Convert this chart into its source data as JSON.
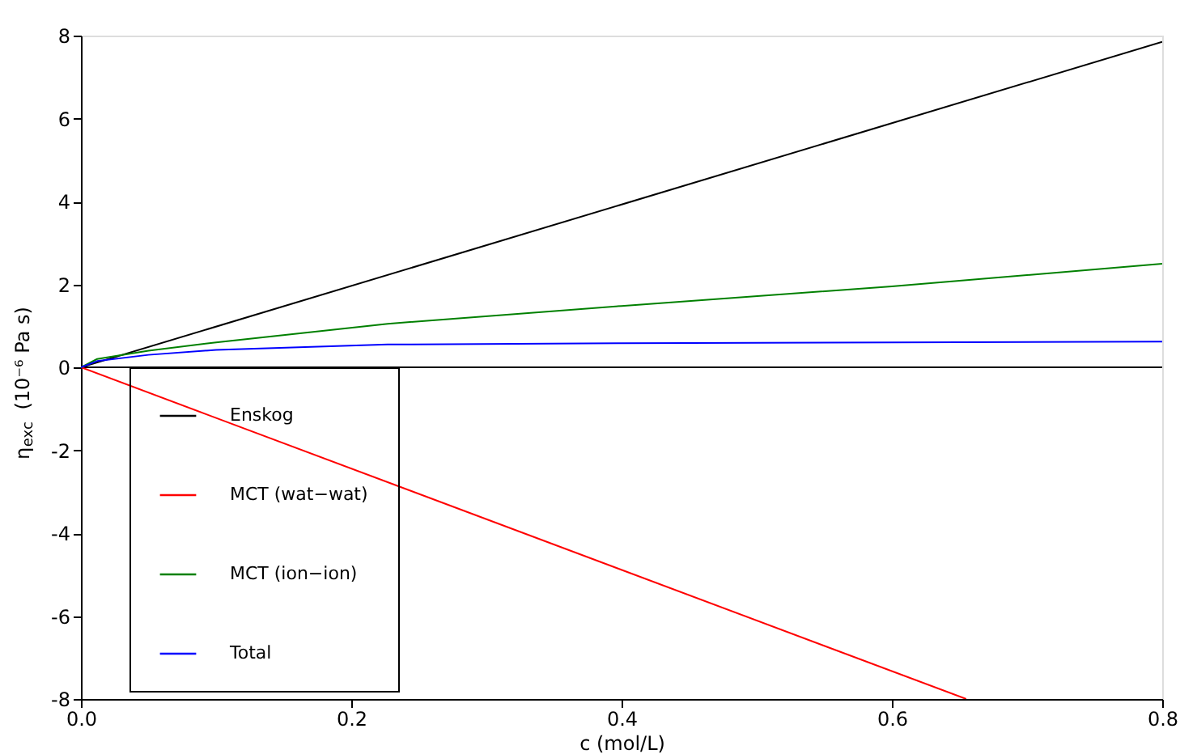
{
  "chart_data": {
    "type": "line",
    "xlabel": "c (mol/L)",
    "ylabel": "η$_{exc}$ (10⁻⁶ Pa s)",
    "xlim": [
      0,
      0.8
    ],
    "ylim": [
      -8,
      8
    ],
    "xticks": [
      {
        "value": 0,
        "label": "0.0"
      },
      {
        "value": 0.2,
        "label": "0.2"
      },
      {
        "value": 0.4,
        "label": "0.4"
      },
      {
        "value": 0.6,
        "label": "0.6"
      },
      {
        "value": 0.8,
        "label": "0.8"
      }
    ],
    "yticks": [
      -8,
      -6,
      -4,
      -2,
      0,
      2,
      4,
      6,
      8
    ],
    "grid": false,
    "legend": "bottom left",
    "line_style": "solid",
    "marker": "none",
    "ref_lines": [
      {
        "axis": "y",
        "value": 0,
        "color": "#000000"
      }
    ],
    "series": [
      {
        "name": "Enskog",
        "color": "#000000",
        "x": [
          0,
          0.8
        ],
        "values": [
          0,
          7.85
        ]
      },
      {
        "name": "MCT (wat−wat)",
        "color": "#ff0000",
        "x": [
          0,
          0.655
        ],
        "values": [
          0,
          -8
        ]
      },
      {
        "name": "MCT (ion−ion)",
        "color": "#008000",
        "x": [
          0,
          0.012,
          0.05,
          0.1,
          0.227,
          0.4,
          0.6,
          0.8
        ],
        "values": [
          0,
          0.2,
          0.4,
          0.6,
          1.05,
          1.48,
          1.95,
          2.5
        ]
      },
      {
        "name": "Total",
        "color": "#0000ff",
        "x": [
          0,
          0.012,
          0.05,
          0.1,
          0.227,
          0.4,
          0.6,
          0.8
        ],
        "values": [
          0,
          0.15,
          0.3,
          0.42,
          0.55,
          0.58,
          0.6,
          0.62
        ]
      }
    ]
  }
}
